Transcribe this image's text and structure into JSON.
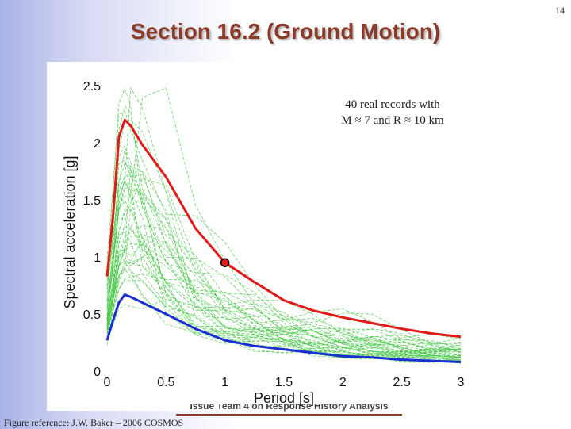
{
  "slide": {
    "number": "14",
    "title": "Section 16.2 (Ground Motion)",
    "annotation_line1": "40 real records with",
    "annotation_line2": "M ≈ 7 and R ≈ 10 km",
    "footer_banner": "Issue Team 4 on Response History Analysis",
    "figure_reference": "Figure reference: J.W. Baker – 2006 COSMOS"
  },
  "chart_data": {
    "type": "line",
    "title": "",
    "xlabel": "Period [s]",
    "ylabel": "Spectral acceleration [g]",
    "xlim": [
      0,
      3
    ],
    "ylim": [
      0,
      2.5
    ],
    "xticks": [
      0,
      0.5,
      1,
      1.5,
      2,
      2.5,
      3
    ],
    "xtick_labels": [
      "0",
      "0.5",
      "1",
      "1.5",
      "2",
      "2.5",
      "3"
    ],
    "yticks": [
      0,
      0.5,
      1,
      1.5,
      2,
      2.5
    ],
    "ytick_labels": [
      "0",
      "0.5",
      "1",
      "1.5",
      "2",
      "2.5"
    ],
    "grid": false,
    "record_count": 40,
    "series": [
      {
        "color": "#e21a1a",
        "style": "solid-thick",
        "x": [
          0,
          0.05,
          0.1,
          0.15,
          0.2,
          0.3,
          0.5,
          0.75,
          1.0,
          1.25,
          1.5,
          1.75,
          2.0,
          2.25,
          2.5,
          2.75,
          3.0
        ],
        "y": [
          0.83,
          1.35,
          2.05,
          2.2,
          2.15,
          1.98,
          1.7,
          1.25,
          0.95,
          0.78,
          0.62,
          0.53,
          0.47,
          0.42,
          0.37,
          0.33,
          0.3
        ]
      },
      {
        "color": "#1a2fd0",
        "style": "solid-thick",
        "x": [
          0,
          0.05,
          0.1,
          0.15,
          0.2,
          0.3,
          0.5,
          0.75,
          1.0,
          1.25,
          1.5,
          1.75,
          2.0,
          2.25,
          2.5,
          2.75,
          3.0
        ],
        "y": [
          0.27,
          0.44,
          0.6,
          0.67,
          0.65,
          0.6,
          0.5,
          0.37,
          0.27,
          0.22,
          0.19,
          0.16,
          0.13,
          0.12,
          0.1,
          0.09,
          0.08
        ]
      }
    ],
    "marker": {
      "x": 1.0,
      "y": 0.95,
      "color": "#e21a1a"
    },
    "records_color": "#3ec43e"
  }
}
